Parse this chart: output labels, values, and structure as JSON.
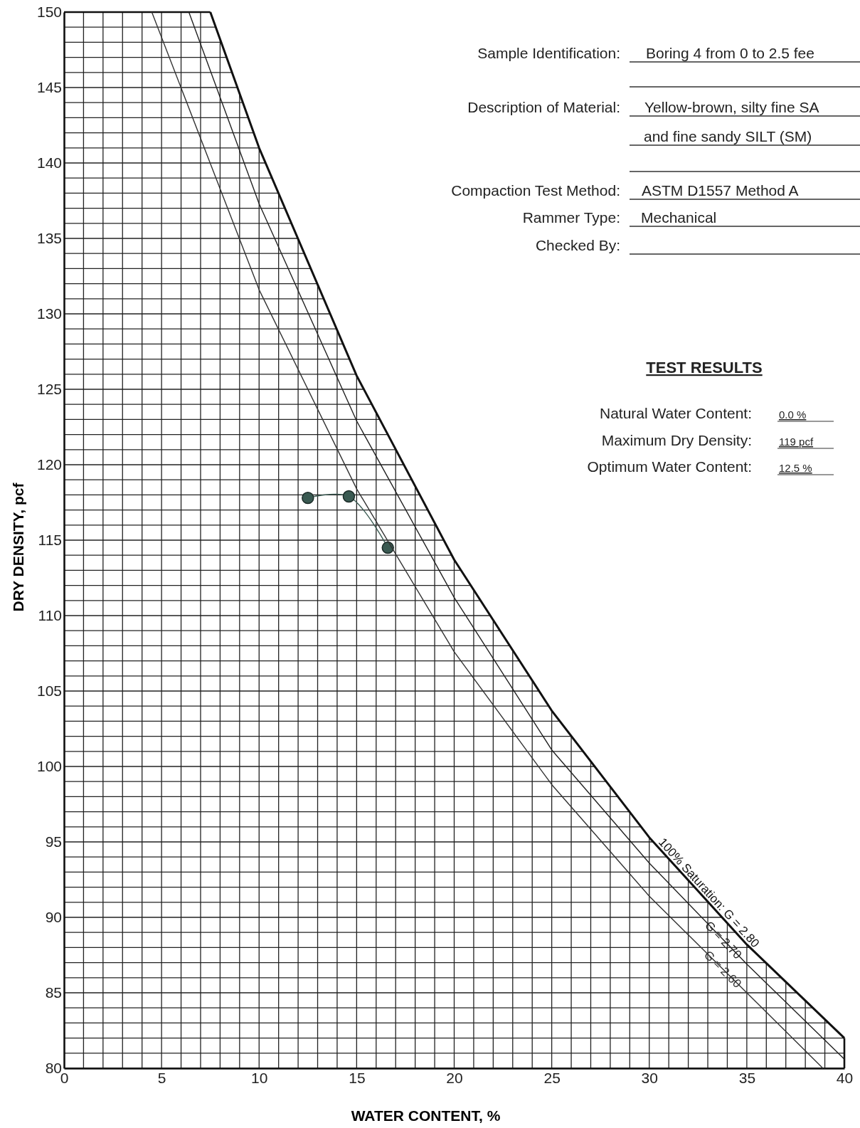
{
  "chart_data": {
    "type": "line",
    "xlabel": "WATER CONTENT, %",
    "ylabel": "DRY DENSITY, pcf",
    "xlim": [
      0,
      40
    ],
    "ylim": [
      80,
      150
    ],
    "xticks": [
      0,
      {
        "value": 1,
        "label": null
      },
      {
        "value": 2,
        "label": null
      },
      {
        "value": 3,
        "label": null
      },
      {
        "value": 4,
        "label": null
      },
      5,
      {
        "value": 6,
        "label": null
      },
      {
        "value": 7,
        "label": null
      },
      {
        "value": 8,
        "label": null
      },
      {
        "value": 9,
        "label": null
      },
      10,
      {
        "value": 11,
        "label": null
      },
      {
        "value": 12,
        "label": null
      },
      {
        "value": 13,
        "label": null
      },
      {
        "value": 14,
        "label": null
      },
      15,
      {
        "value": 16,
        "label": null
      },
      {
        "value": 17,
        "label": null
      },
      {
        "value": 18,
        "label": null
      },
      {
        "value": 19,
        "label": null
      },
      20,
      {
        "value": 21,
        "label": null
      },
      {
        "value": 22,
        "label": null
      },
      {
        "value": 23,
        "label": null
      },
      {
        "value": 24,
        "label": null
      },
      25,
      {
        "value": 26,
        "label": null
      },
      {
        "value": 27,
        "label": null
      },
      {
        "value": 28,
        "label": null
      },
      {
        "value": 29,
        "label": null
      },
      30,
      {
        "value": 31,
        "label": null
      },
      {
        "value": 32,
        "label": null
      },
      {
        "value": 33,
        "label": null
      },
      {
        "value": 34,
        "label": null
      },
      35,
      {
        "value": 36,
        "label": null
      },
      {
        "value": 37,
        "label": null
      },
      {
        "value": 38,
        "label": null
      },
      {
        "value": 39,
        "label": null
      },
      40
    ],
    "yticks": [
      80,
      {
        "value": 81,
        "label": null
      },
      {
        "value": 82,
        "label": null
      },
      {
        "value": 83,
        "label": null
      },
      {
        "value": 84,
        "label": null
      },
      85,
      {
        "value": 86,
        "label": null
      },
      {
        "value": 87,
        "label": null
      },
      {
        "value": 88,
        "label": null
      },
      {
        "value": 89,
        "label": null
      },
      90,
      {
        "value": 91,
        "label": null
      },
      {
        "value": 92,
        "label": null
      },
      {
        "value": 93,
        "label": null
      },
      {
        "value": 94,
        "label": null
      },
      95,
      {
        "value": 96,
        "label": null
      },
      {
        "value": 97,
        "label": null
      },
      {
        "value": 98,
        "label": null
      },
      {
        "value": 99,
        "label": null
      },
      100,
      {
        "value": 101,
        "label": null
      },
      {
        "value": 102,
        "label": null
      },
      {
        "value": 103,
        "label": null
      },
      {
        "value": 104,
        "label": null
      },
      105,
      {
        "value": 106,
        "label": null
      },
      {
        "value": 107,
        "label": null
      },
      {
        "value": 108,
        "label": null
      },
      {
        "value": 109,
        "label": null
      },
      110,
      {
        "value": 111,
        "label": null
      },
      {
        "value": 112,
        "label": null
      },
      {
        "value": 113,
        "label": null
      },
      {
        "value": 114,
        "label": null
      },
      115,
      {
        "value": 116,
        "label": null
      },
      {
        "value": 117,
        "label": null
      },
      {
        "value": 118,
        "label": null
      },
      {
        "value": 119,
        "label": null
      },
      120,
      {
        "value": 121,
        "label": null
      },
      {
        "value": 122,
        "label": null
      },
      {
        "value": 123,
        "label": null
      },
      {
        "value": 124,
        "label": null
      },
      125,
      {
        "value": 126,
        "label": null
      },
      {
        "value": 127,
        "label": null
      },
      {
        "value": 128,
        "label": null
      },
      {
        "value": 129,
        "label": null
      },
      130,
      {
        "value": 131,
        "label": null
      },
      {
        "value": 132,
        "label": null
      },
      {
        "value": 133,
        "label": null
      },
      {
        "value": 134,
        "label": null
      },
      135,
      {
        "value": 136,
        "label": null
      },
      {
        "value": 137,
        "label": null
      },
      {
        "value": 138,
        "label": null
      },
      {
        "value": 139,
        "label": null
      },
      140,
      {
        "value": 141,
        "label": null
      },
      {
        "value": 142,
        "label": null
      },
      {
        "value": 143,
        "label": null
      },
      {
        "value": 144,
        "label": null
      },
      145,
      {
        "value": 146,
        "label": null
      },
      {
        "value": 147,
        "label": null
      },
      {
        "value": 148,
        "label": null
      },
      {
        "value": 149,
        "label": null
      },
      150
    ],
    "grid": true,
    "series": [
      {
        "color": "#3a5a52",
        "marker": "circle",
        "x": [
          12.5,
          14.6,
          16.6
        ],
        "values": [
          117.8,
          117.9,
          114.5
        ]
      },
      {
        "name": "100% Saturation: G = 2.80",
        "color": "#111111",
        "marker": "none",
        "x": [
          7.5,
          10,
          15,
          20,
          25,
          30,
          35,
          40
        ],
        "values": [
          150,
          141.0,
          125.9,
          113.7,
          103.7,
          95.3,
          88.2,
          82.0
        ]
      },
      {
        "name": "G = 2.70",
        "color": "#222222",
        "marker": "none",
        "x": [
          6.4,
          10,
          15,
          20,
          25,
          30,
          35,
          40
        ],
        "values": [
          150,
          137.3,
          122.9,
          111.2,
          101.1,
          93.6,
          86.9,
          80.6
        ]
      },
      {
        "name": "G = 2.60",
        "color": "#333333",
        "marker": "none",
        "x": [
          4.5,
          10,
          15,
          20,
          25,
          30,
          35,
          38.9
        ],
        "values": [
          150,
          131.6,
          118.4,
          107.6,
          98.8,
          91.4,
          85.0,
          80
        ]
      }
    ],
    "annotations": [
      "Sample Identification:",
      "Boring 4 from 0 to 2.5 fee",
      "Description of Material:",
      "Yellow-brown, silty fine SA",
      "and fine sandy SILT (SM)",
      "Compaction Test Method:",
      "ASTM D1557 Method A",
      "Rammer Type:",
      "Mechanical",
      "Checked By:",
      "TEST RESULTS",
      "Natural Water Content:",
      "0.0 %",
      "Maximum Dry Density:",
      "119 pcf",
      "Optimum Water Content:",
      "12.5 %"
    ]
  }
}
